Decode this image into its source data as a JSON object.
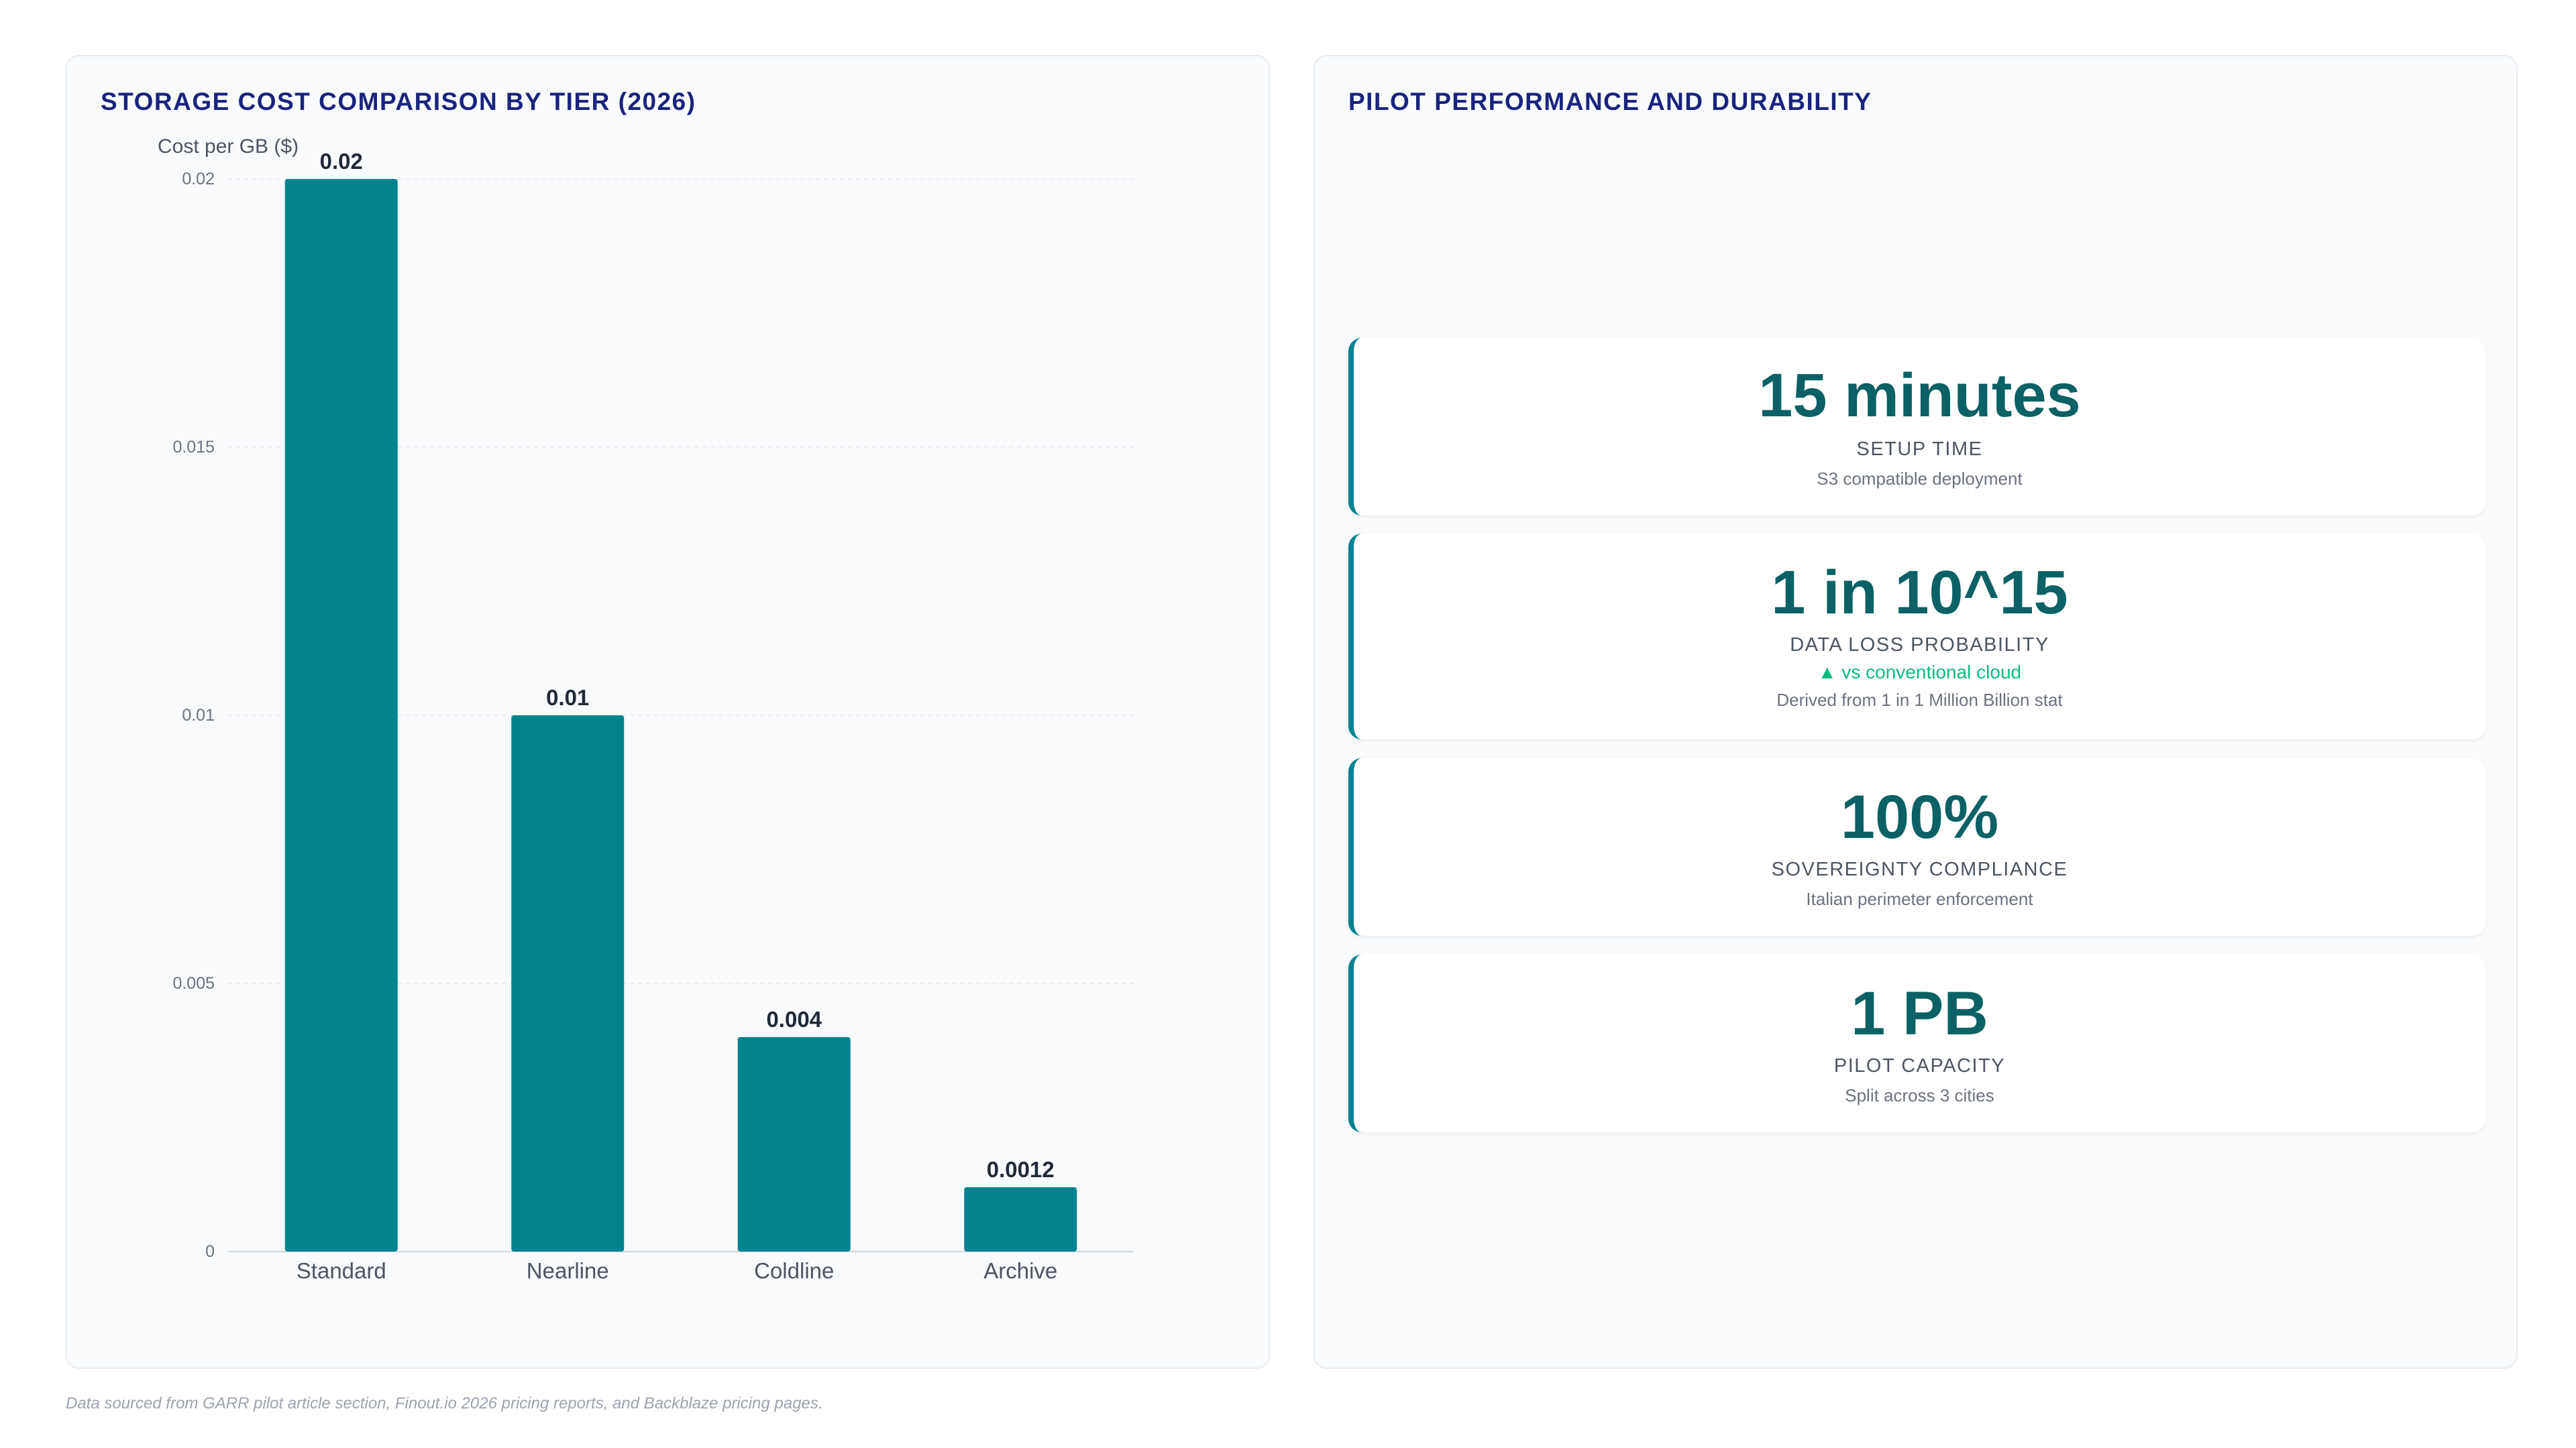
{
  "left_panel": {
    "title": "STORAGE COST COMPARISON BY TIER (2026)"
  },
  "right_panel": {
    "title": "PILOT PERFORMANCE AND DURABILITY",
    "metrics": [
      {
        "value": "15 minutes",
        "label": "SETUP TIME",
        "trend": "",
        "note": "S3 compatible deployment"
      },
      {
        "value": "1 in 10^15",
        "label": "DATA LOSS PROBABILITY",
        "trend": "▲ vs conventional cloud",
        "note": "Derived from 1 in 1 Million Billion stat"
      },
      {
        "value": "100%",
        "label": "SOVEREIGNTY COMPLIANCE",
        "trend": "",
        "note": "Italian perimeter enforcement"
      },
      {
        "value": "1 PB",
        "label": "PILOT CAPACITY",
        "trend": "",
        "note": "Split across 3 cities"
      }
    ]
  },
  "footnote": "Data sourced from GARR pilot article section, Finout.io 2026 pricing reports, and Backblaze pricing pages.",
  "colors": {
    "bar": "#00838f",
    "title": "#1a237e",
    "metric_value": "#0b6163",
    "card_accent": "#00838f",
    "trend": "#10b981"
  },
  "chart_data": {
    "type": "bar",
    "title": "STORAGE COST COMPARISON BY TIER (2026)",
    "ylabel": "Cost per GB ($)",
    "xlabel": "",
    "categories": [
      "Standard",
      "Nearline",
      "Coldline",
      "Archive"
    ],
    "values": [
      0.02,
      0.01,
      0.004,
      0.0012
    ],
    "value_labels": [
      "0.02",
      "0.01",
      "0.004",
      "0.0012"
    ],
    "yticks": [
      0,
      0.005,
      0.01,
      0.015,
      0.02
    ],
    "ytick_labels": [
      "0",
      "0.005",
      "0.01",
      "0.015",
      "0.02"
    ],
    "ylim": [
      0,
      0.02
    ],
    "grid": true,
    "legend": "none"
  }
}
